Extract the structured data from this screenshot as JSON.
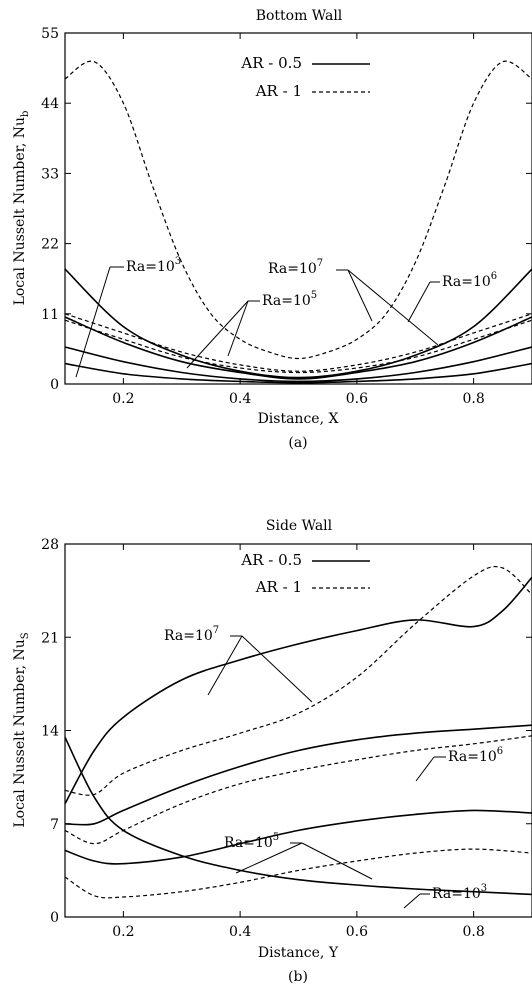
{
  "chart_data": [
    {
      "type": "line",
      "panel": "(a)",
      "title": "Bottom Wall",
      "xlabel": "Distance, X",
      "ylabel": "Local Nusselt Number, Nu",
      "ylabel_sub": "b",
      "xlim": [
        0.1,
        0.9
      ],
      "ylim": [
        0,
        55
      ],
      "xticks": [
        "0.2",
        "0.4",
        "0.6",
        "0.8"
      ],
      "yticks": [
        "0",
        "11",
        "22",
        "33",
        "44",
        "55"
      ],
      "legend": {
        "placement": "top-center",
        "entries": [
          {
            "label": "AR - 0.5",
            "style": "solid"
          },
          {
            "label": "AR - 1",
            "style": "dashed"
          }
        ]
      },
      "annotations": [
        {
          "base": "Ra=10",
          "exp": "3"
        },
        {
          "base": "Ra=10",
          "exp": "5"
        },
        {
          "base": "Ra=10",
          "exp": "7"
        },
        {
          "base": "Ra=10",
          "exp": "6"
        }
      ],
      "series": [
        {
          "style": "solid",
          "x": [
            0.1,
            0.2,
            0.3,
            0.4,
            0.5,
            0.6,
            0.7,
            0.8,
            0.9
          ],
          "y": [
            18,
            9,
            4.5,
            2,
            1,
            2,
            4.5,
            9,
            18
          ]
        },
        {
          "style": "solid",
          "x": [
            0.1,
            0.2,
            0.3,
            0.4,
            0.5,
            0.6,
            0.7,
            0.8,
            0.9
          ],
          "y": [
            10.5,
            6.5,
            3.5,
            1.8,
            0.8,
            1.8,
            3.5,
            6.5,
            10.5
          ]
        },
        {
          "style": "solid",
          "x": [
            0.1,
            0.2,
            0.3,
            0.4,
            0.5,
            0.6,
            0.7,
            0.8,
            0.9
          ],
          "y": [
            5.8,
            3.5,
            1.8,
            0.8,
            0.4,
            0.8,
            1.8,
            3.5,
            5.8
          ]
        },
        {
          "style": "solid",
          "x": [
            0.1,
            0.2,
            0.3,
            0.4,
            0.5,
            0.6,
            0.7,
            0.8,
            0.9
          ],
          "y": [
            3.2,
            1.6,
            0.8,
            0.4,
            0.2,
            0.4,
            0.8,
            1.6,
            3.2
          ]
        },
        {
          "style": "dashed",
          "x": [
            0.1,
            0.15,
            0.2,
            0.25,
            0.3,
            0.35,
            0.4,
            0.45,
            0.5,
            0.55,
            0.6,
            0.65,
            0.7,
            0.75,
            0.8,
            0.85,
            0.9
          ],
          "y": [
            47.8,
            50.5,
            44,
            31,
            19,
            11,
            7,
            5,
            4,
            5,
            7,
            11,
            19,
            31,
            44,
            50.5,
            47.8
          ]
        },
        {
          "style": "dashed",
          "x": [
            0.1,
            0.2,
            0.3,
            0.4,
            0.5,
            0.6,
            0.7,
            0.8,
            0.9
          ],
          "y": [
            11,
            8,
            5,
            3,
            2,
            3,
            5,
            8,
            11
          ]
        },
        {
          "style": "dashed",
          "x": [
            0.1,
            0.2,
            0.3,
            0.4,
            0.5,
            0.6,
            0.7,
            0.8,
            0.9
          ],
          "y": [
            10,
            7,
            4.2,
            2.5,
            1.8,
            2.5,
            4.2,
            7,
            10
          ]
        }
      ]
    },
    {
      "type": "line",
      "panel": "(b)",
      "title": "Side Wall",
      "xlabel": "Distance, Y",
      "ylabel": "Local Nusselt Number, Nu",
      "ylabel_sub": "S",
      "xlim": [
        0.1,
        0.9
      ],
      "ylim": [
        0,
        28
      ],
      "xticks": [
        "0.2",
        "0.4",
        "0.6",
        "0.8"
      ],
      "yticks": [
        "0",
        "7",
        "14",
        "21",
        "28"
      ],
      "legend": {
        "placement": "top-center",
        "entries": [
          {
            "label": "AR - 0.5",
            "style": "solid"
          },
          {
            "label": "AR - 1",
            "style": "dashed"
          }
        ]
      },
      "annotations": [
        {
          "base": "Ra=10",
          "exp": "7"
        },
        {
          "base": "Ra=10",
          "exp": "6"
        },
        {
          "base": "Ra=10",
          "exp": "5"
        },
        {
          "base": "Ra=10",
          "exp": "3"
        }
      ],
      "series": [
        {
          "style": "solid",
          "x": [
            0.1,
            0.15,
            0.2,
            0.3,
            0.4,
            0.5,
            0.6,
            0.7,
            0.8,
            0.85,
            0.9
          ],
          "y": [
            8.5,
            12.5,
            15,
            17.8,
            19.3,
            20.5,
            21.5,
            22.3,
            21.8,
            23,
            25.5
          ]
        },
        {
          "style": "solid",
          "x": [
            0.1,
            0.15,
            0.2,
            0.3,
            0.4,
            0.5,
            0.6,
            0.7,
            0.8,
            0.9
          ],
          "y": [
            7,
            7,
            8,
            9.8,
            11.3,
            12.5,
            13.3,
            13.8,
            14.1,
            14.4
          ]
        },
        {
          "style": "solid",
          "x": [
            0.1,
            0.15,
            0.2,
            0.3,
            0.4,
            0.5,
            0.6,
            0.7,
            0.8,
            0.9
          ],
          "y": [
            5,
            4.2,
            4,
            4.5,
            5.5,
            6.5,
            7.2,
            7.7,
            8,
            7.8
          ]
        },
        {
          "style": "solid",
          "x": [
            0.1,
            0.15,
            0.2,
            0.3,
            0.4,
            0.5,
            0.6,
            0.7,
            0.8,
            0.9
          ],
          "y": [
            13.5,
            9,
            6.5,
            4.6,
            3.5,
            2.8,
            2.4,
            2.1,
            1.9,
            1.7
          ]
        },
        {
          "style": "dashed",
          "x": [
            0.1,
            0.15,
            0.2,
            0.3,
            0.4,
            0.5,
            0.6,
            0.7,
            0.8,
            0.85,
            0.9
          ],
          "y": [
            9.5,
            9.2,
            10.8,
            12.5,
            13.8,
            15.3,
            18,
            22,
            25.6,
            26.2,
            24.2
          ]
        },
        {
          "style": "dashed",
          "x": [
            0.1,
            0.15,
            0.2,
            0.3,
            0.4,
            0.5,
            0.6,
            0.7,
            0.8,
            0.9
          ],
          "y": [
            6.5,
            5.5,
            6.5,
            8.5,
            10,
            11,
            11.8,
            12.5,
            13,
            13.6
          ]
        },
        {
          "style": "dashed",
          "x": [
            0.1,
            0.15,
            0.2,
            0.3,
            0.4,
            0.5,
            0.6,
            0.7,
            0.8,
            0.9
          ],
          "y": [
            3,
            1.6,
            1.5,
            1.9,
            2.6,
            3.5,
            4.2,
            4.8,
            5.1,
            4.8
          ]
        }
      ]
    }
  ]
}
